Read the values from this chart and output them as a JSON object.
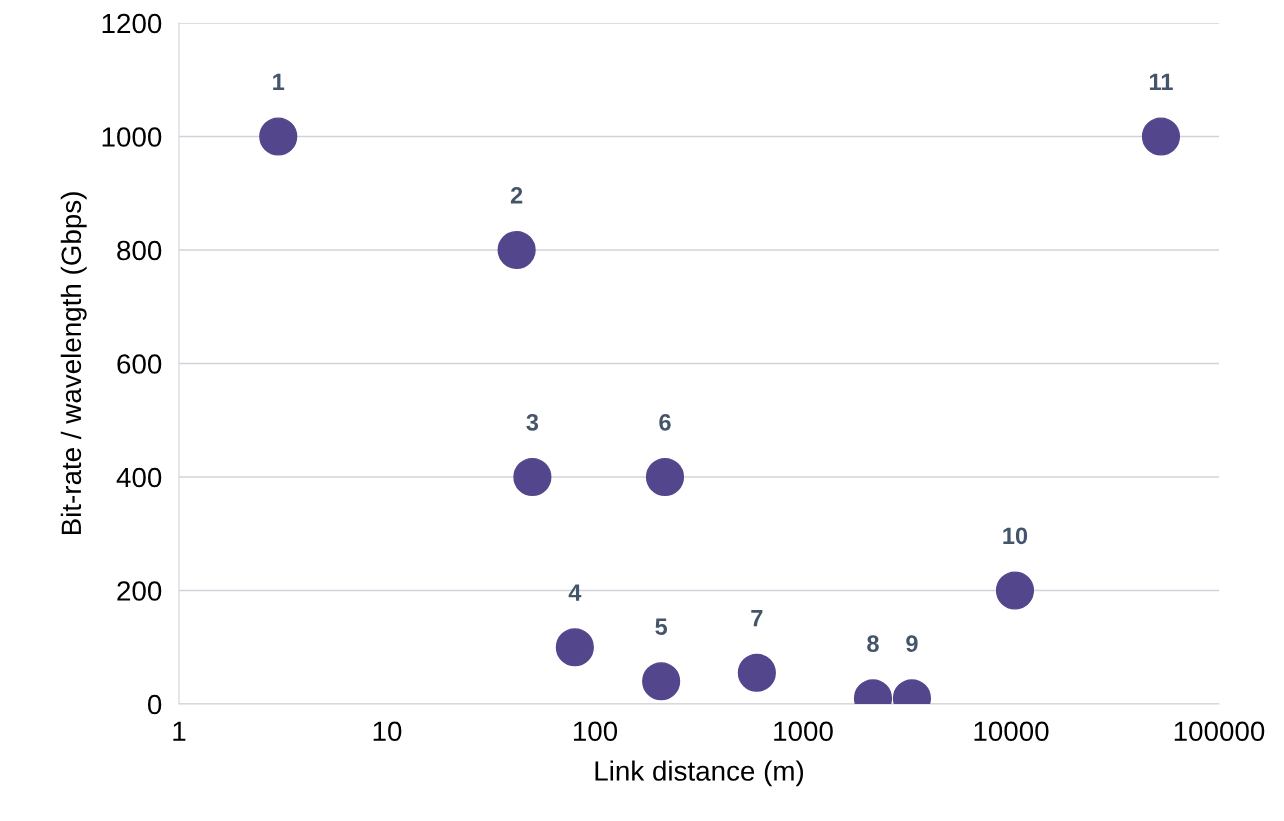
{
  "chart_data": {
    "type": "scatter",
    "xlabel": "Link distance (m)",
    "ylabel": "Bit-rate / wavelength (Gbps)",
    "log": "x",
    "xlim": [
      1,
      100000
    ],
    "xticks": [
      1,
      10,
      100,
      1000,
      10000,
      100000
    ],
    "ylim": [
      0,
      1200
    ],
    "yticks": [
      0,
      200,
      400,
      600,
      800,
      1000,
      1200
    ],
    "grid": "y",
    "marker": "circle",
    "legend": false,
    "series": [
      {
        "color": "#54468c",
        "x": [
          3,
          42,
          50,
          80,
          208,
          217,
          600,
          2170,
          3340,
          10450,
          52600
        ],
        "values": [
          1000,
          800,
          400,
          100,
          40,
          400,
          55,
          10,
          10,
          200,
          1000
        ]
      }
    ],
    "annotations": [
      {
        "text": "1",
        "x": 3,
        "y": 1000
      },
      {
        "text": "2",
        "x": 42,
        "y": 800
      },
      {
        "text": "3",
        "x": 50,
        "y": 400
      },
      {
        "text": "4",
        "x": 80,
        "y": 100
      },
      {
        "text": "5",
        "x": 208,
        "y": 40
      },
      {
        "text": "6",
        "x": 217,
        "y": 400
      },
      {
        "text": "7",
        "x": 600,
        "y": 55
      },
      {
        "text": "8",
        "x": 2170,
        "y": 10
      },
      {
        "text": "9",
        "x": 3340,
        "y": 10
      },
      {
        "text": "10",
        "x": 10450,
        "y": 200
      },
      {
        "text": "11",
        "x": 52600,
        "y": 1000
      }
    ]
  }
}
